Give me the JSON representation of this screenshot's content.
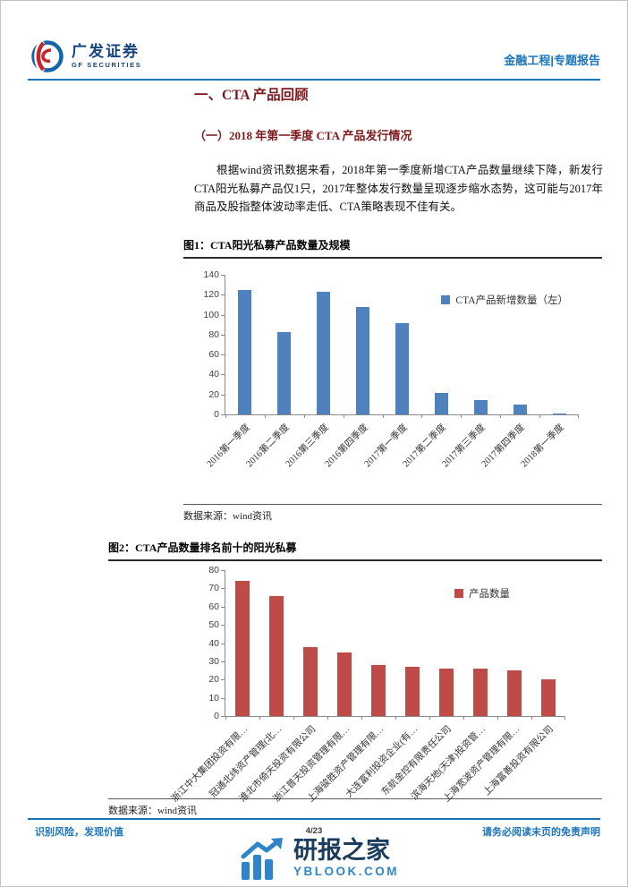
{
  "page": {
    "header": {
      "logo_cn": "广发证券",
      "logo_en": "GF SECURITIES",
      "doc_type": "金融工程|专题报告"
    },
    "section_title": "一、CTA 产品回顾",
    "subsection_title": "（一）2018 年第一季度 CTA 产品发行情况",
    "paragraph": "根据wind资讯数据来看，2018年第一季度新增CTA产品数量继续下降，新发行CTA阳光私募产品仅1只，2017年整体发行数量呈现逐步缩水态势，这可能与2017年商品及股指整体波动率走低、CTA策略表现不佳有关。",
    "footer": {
      "left": "识别风险，发现价值",
      "right": "请务必阅读末页的免责声明",
      "page_number": "4/23"
    },
    "watermark": {
      "name": "研报之家",
      "site": "YBLOOK.COM",
      "icon": "bar-chart-arrow-icon"
    }
  },
  "colors": {
    "accent_blue": "#1b75bb",
    "heading_red": "#7d1a1d",
    "bar_blue": "#4f81bd",
    "bar_red": "#be4b48",
    "watermark_navy": "#1c3c5e",
    "watermark_blue": "#2e86c8"
  },
  "chart_data": [
    {
      "type": "bar",
      "title": "图1：CTA阳光私募产品数量及规模",
      "legend": "CTA产品新增数量（左）",
      "legend_position": "top-right-inside",
      "color": "#4f81bd",
      "categories": [
        "2016第一季度",
        "2016第二季度",
        "2016第三季度",
        "2016第四季度",
        "2017第一季度",
        "2017第二季度",
        "2017第三季度",
        "2017第四季度",
        "2018第一季度"
      ],
      "values": [
        125,
        83,
        123,
        108,
        92,
        22,
        14,
        10,
        1
      ],
      "xlabel": "",
      "ylabel": "",
      "ylim": [
        0,
        140
      ],
      "ystep": 20,
      "grid": false,
      "source": "数据来源：wind资讯"
    },
    {
      "type": "bar",
      "title": "图2：CTA产品数量排名前十的阳光私募",
      "legend": "产品数量",
      "legend_position": "top-right-inside",
      "color": "#be4b48",
      "categories": [
        "浙江中大集团投资有限…",
        "冠通北纬资产管理(北…",
        "淮北市倚天投资有限公司",
        "浙江普天投资管理有限…",
        "上海骏胜资产管理有限…",
        "大连富利投资企业(有…",
        "东航金控有限责任公司",
        "滨海天地(天津)投资管…",
        "上海宽波资产管理有限…",
        "上海富善投资有限公司"
      ],
      "values": [
        74,
        66,
        38,
        35,
        28,
        27,
        26,
        26,
        25,
        20
      ],
      "xlabel": "",
      "ylabel": "",
      "ylim": [
        0,
        80
      ],
      "ystep": 10,
      "grid": false,
      "source": "数据来源：wind资讯"
    }
  ]
}
